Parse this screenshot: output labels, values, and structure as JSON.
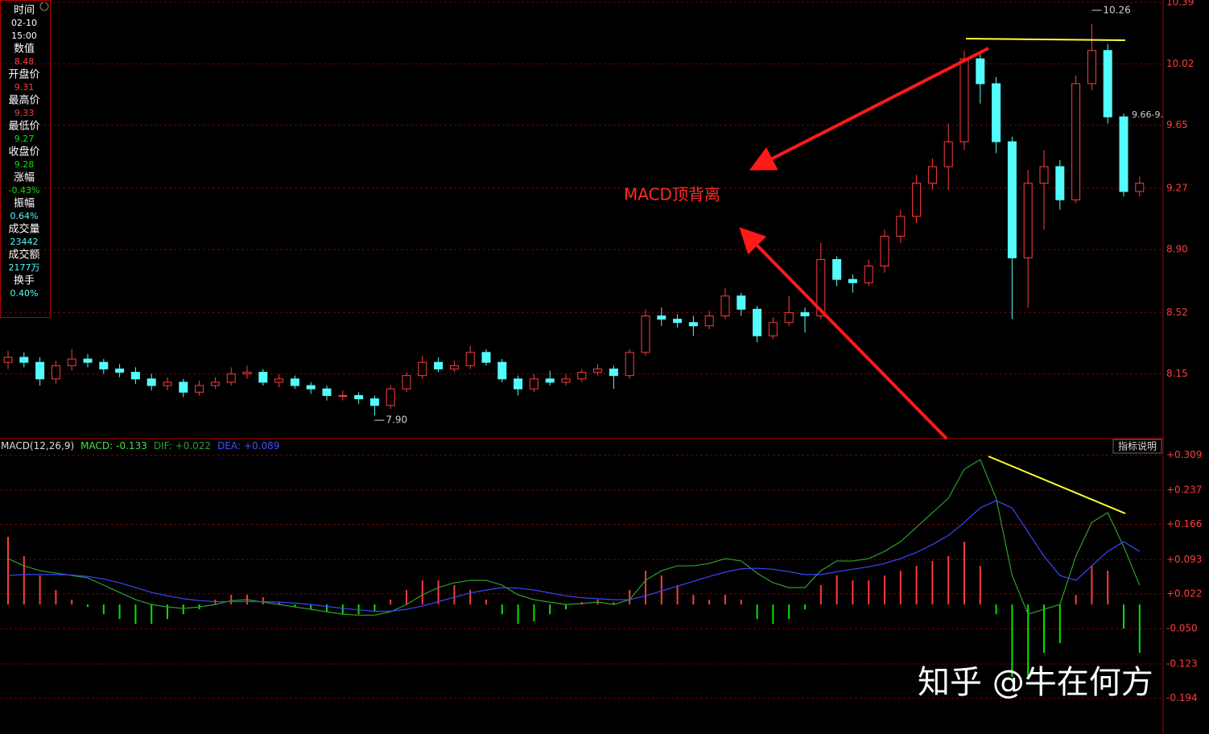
{
  "chart_data": [
    {
      "type": "candlestick",
      "ylim": [
        7.76,
        10.39
      ],
      "yticks": [
        10.39,
        10.02,
        9.65,
        9.27,
        {
          "value": 8.9,
          "label": "8.90"
        },
        8.52,
        8.15
      ],
      "grid": true,
      "up_color": "#ff3c3c",
      "down_color": "#54fcfc",
      "open": [
        8.22,
        8.25,
        8.22,
        8.12,
        8.2,
        8.24,
        8.22,
        8.18,
        8.16,
        8.12,
        8.08,
        8.1,
        8.04,
        8.08,
        8.1,
        8.15,
        8.16,
        8.1,
        8.12,
        8.08,
        8.06,
        8.02,
        8.02,
        8.0,
        7.96,
        8.06,
        8.14,
        8.22,
        8.18,
        8.2,
        8.28,
        8.22,
        8.12,
        8.06,
        8.12,
        8.1,
        8.12,
        8.16,
        8.18,
        8.14,
        8.28,
        8.5,
        8.48,
        8.46,
        8.44,
        8.5,
        8.62,
        8.54,
        8.38,
        8.46,
        8.52,
        8.5,
        8.84,
        8.72,
        8.7,
        8.8,
        8.98,
        9.1,
        9.3,
        9.4,
        9.55,
        10.05,
        9.9,
        9.55,
        8.85,
        9.3,
        9.4,
        9.2,
        9.9,
        10.1,
        9.7,
        9.25
      ],
      "high": [
        8.29,
        8.28,
        8.25,
        8.23,
        8.3,
        8.27,
        8.24,
        8.21,
        8.19,
        8.15,
        8.13,
        8.12,
        8.11,
        8.13,
        8.19,
        8.2,
        8.18,
        8.15,
        8.14,
        8.1,
        8.08,
        8.05,
        8.04,
        8.02,
        8.08,
        8.16,
        8.26,
        8.25,
        8.23,
        8.32,
        8.3,
        8.24,
        8.14,
        8.15,
        8.17,
        8.15,
        8.18,
        8.21,
        8.2,
        8.3,
        8.54,
        8.55,
        8.51,
        8.5,
        8.53,
        8.67,
        8.64,
        8.56,
        8.49,
        8.62,
        8.55,
        8.94,
        8.86,
        8.75,
        8.84,
        9.02,
        9.14,
        9.35,
        9.45,
        9.66,
        10.1,
        10.09,
        9.94,
        9.58,
        9.38,
        9.5,
        9.44,
        9.95,
        10.26,
        10.14,
        9.72,
        9.34
      ],
      "low": [
        8.18,
        8.19,
        8.08,
        8.09,
        8.17,
        8.19,
        8.15,
        8.13,
        8.09,
        8.05,
        8.05,
        8.01,
        8.02,
        8.06,
        8.08,
        8.12,
        8.08,
        8.07,
        8.06,
        8.03,
        7.99,
        7.99,
        7.97,
        7.9,
        7.94,
        8.04,
        8.12,
        8.16,
        8.16,
        8.18,
        8.2,
        8.1,
        8.02,
        8.04,
        8.08,
        8.08,
        8.1,
        8.14,
        8.06,
        8.12,
        8.26,
        8.44,
        8.43,
        8.38,
        8.42,
        8.48,
        8.5,
        8.34,
        8.36,
        8.44,
        8.4,
        8.48,
        8.68,
        8.64,
        8.68,
        8.76,
        8.94,
        9.06,
        9.26,
        9.26,
        9.5,
        9.78,
        9.48,
        8.48,
        8.55,
        9.02,
        9.14,
        9.18,
        9.86,
        9.66,
        9.22,
        9.22
      ],
      "close": [
        8.25,
        8.22,
        8.12,
        8.2,
        8.24,
        8.22,
        8.18,
        8.16,
        8.12,
        8.08,
        8.1,
        8.04,
        8.08,
        8.1,
        8.15,
        8.16,
        8.1,
        8.12,
        8.08,
        8.06,
        8.02,
        8.02,
        8.0,
        7.96,
        8.06,
        8.14,
        8.22,
        8.18,
        8.2,
        8.28,
        8.22,
        8.12,
        8.06,
        8.12,
        8.1,
        8.12,
        8.16,
        8.18,
        8.14,
        8.28,
        8.5,
        8.48,
        8.46,
        8.44,
        8.5,
        8.62,
        8.54,
        8.38,
        8.46,
        8.52,
        8.5,
        8.84,
        8.72,
        8.7,
        8.8,
        8.98,
        9.1,
        9.3,
        9.4,
        9.55,
        10.05,
        9.9,
        9.55,
        8.85,
        9.3,
        9.4,
        9.2,
        9.9,
        10.1,
        9.7,
        9.25,
        9.3
      ],
      "low_marker": {
        "value": 7.9,
        "label": "7.90"
      },
      "high_marker": {
        "value": 10.26,
        "label": "10.26"
      },
      "crosshair_label": "9.66-9.",
      "annotation": "MACD顶背离",
      "info_panel": [
        {
          "label": "时间",
          "values": [
            "02-10",
            "15:00"
          ],
          "color": "#ffffff"
        },
        {
          "label": "数值",
          "values": [
            "8.48"
          ],
          "color": "#ff3c3c"
        },
        {
          "label": "开盘价",
          "values": [
            "9.31"
          ],
          "color": "#ff3c3c"
        },
        {
          "label": "最高价",
          "values": [
            "9.33"
          ],
          "color": "#ff3c3c"
        },
        {
          "label": "最低价",
          "values": [
            "9.27"
          ],
          "color": "#00e600"
        },
        {
          "label": "收盘价",
          "values": [
            "9.28"
          ],
          "color": "#00e600"
        },
        {
          "label": "涨幅",
          "values": [
            "-0.43%"
          ],
          "color": "#00e600"
        },
        {
          "label": "振幅",
          "values": [
            "0.64%"
          ],
          "color": "#54fcfc"
        },
        {
          "label": "成交量",
          "values": [
            "23442"
          ],
          "color": "#54fcfc"
        },
        {
          "label": "成交额",
          "values": [
            "2177万"
          ],
          "color": "#54fcfc"
        },
        {
          "label": "换手",
          "values": [
            "0.40%"
          ],
          "color": "#54fcfc"
        }
      ]
    },
    {
      "type": "macd",
      "title": "MACD(12,26,9)",
      "readouts": [
        {
          "label": "MACD:",
          "value": "-0.133",
          "color": "#4cd94c"
        },
        {
          "label": "DIF:",
          "value": "+0.022",
          "color": "#2e9e2e"
        },
        {
          "label": "DEA:",
          "value": "+0.089",
          "color": "#4650ff"
        }
      ],
      "button": "指标说明",
      "ylim": [
        -0.268,
        0.325
      ],
      "yticks": [
        {
          "value": 0.309,
          "label": "+0.309"
        },
        {
          "value": 0.237,
          "label": "+0.237"
        },
        {
          "value": 0.166,
          "label": "+0.166"
        },
        {
          "value": 0.093,
          "label": "+0.093"
        },
        {
          "value": 0.022,
          "label": "+0.022"
        },
        {
          "value": -0.05,
          "label": "-0.050"
        },
        -0.123,
        -0.194
      ],
      "grid": true,
      "histogram": {
        "up_color": "#ff3c3c",
        "down_color": "#00e600",
        "values": [
          0.14,
          0.1,
          0.06,
          0.03,
          0.01,
          -0.005,
          -0.02,
          -0.03,
          -0.04,
          -0.04,
          -0.03,
          -0.02,
          -0.01,
          0.01,
          0.02,
          0.02,
          0.015,
          0.005,
          -0.005,
          -0.01,
          -0.015,
          -0.02,
          -0.02,
          -0.015,
          0.01,
          0.03,
          0.05,
          0.05,
          0.04,
          0.03,
          0.01,
          -0.02,
          -0.04,
          -0.035,
          -0.02,
          -0.01,
          0.005,
          0.01,
          0.005,
          0.03,
          0.07,
          0.06,
          0.04,
          0.02,
          0.01,
          0.02,
          0.01,
          -0.03,
          -0.04,
          -0.03,
          -0.01,
          0.04,
          0.06,
          0.05,
          0.05,
          0.06,
          0.07,
          0.08,
          0.09,
          0.1,
          0.13,
          0.08,
          -0.02,
          -0.15,
          -0.15,
          -0.1,
          -0.08,
          0.02,
          0.08,
          0.07,
          -0.05,
          -0.1
        ]
      },
      "series": [
        {
          "color": "#2e9e2e",
          "values": [
            0.095,
            0.08,
            0.07,
            0.065,
            0.06,
            0.055,
            0.04,
            0.025,
            0.01,
            0.0,
            -0.005,
            -0.008,
            -0.005,
            0.0,
            0.008,
            0.01,
            0.005,
            0.0,
            -0.005,
            -0.01,
            -0.015,
            -0.02,
            -0.022,
            -0.022,
            -0.015,
            0.0,
            0.02,
            0.035,
            0.045,
            0.05,
            0.05,
            0.04,
            0.02,
            0.01,
            0.005,
            0.0,
            0.002,
            0.005,
            0.0,
            0.01,
            0.05,
            0.07,
            0.08,
            0.08,
            0.085,
            0.095,
            0.09,
            0.065,
            0.045,
            0.035,
            0.035,
            0.07,
            0.09,
            0.09,
            0.095,
            0.11,
            0.13,
            0.16,
            0.19,
            0.22,
            0.28,
            0.3,
            0.22,
            0.06,
            -0.02,
            -0.01,
            0.0,
            0.1,
            0.17,
            0.19,
            0.12,
            0.04
          ]
        },
        {
          "color": "#3c46ff",
          "values": [
            0.06,
            0.062,
            0.062,
            0.062,
            0.061,
            0.058,
            0.053,
            0.045,
            0.035,
            0.025,
            0.018,
            0.012,
            0.008,
            0.006,
            0.006,
            0.006,
            0.006,
            0.005,
            0.003,
            0.0,
            -0.004,
            -0.008,
            -0.011,
            -0.014,
            -0.014,
            -0.01,
            -0.003,
            0.006,
            0.015,
            0.024,
            0.03,
            0.035,
            0.034,
            0.03,
            0.024,
            0.018,
            0.014,
            0.012,
            0.01,
            0.01,
            0.018,
            0.028,
            0.038,
            0.048,
            0.058,
            0.067,
            0.074,
            0.075,
            0.073,
            0.068,
            0.062,
            0.062,
            0.068,
            0.073,
            0.078,
            0.085,
            0.095,
            0.108,
            0.124,
            0.143,
            0.17,
            0.2,
            0.215,
            0.2,
            0.15,
            0.1,
            0.06,
            0.05,
            0.08,
            0.11,
            0.13,
            0.11
          ]
        }
      ]
    }
  ],
  "watermark": "知乎 @牛在何方"
}
